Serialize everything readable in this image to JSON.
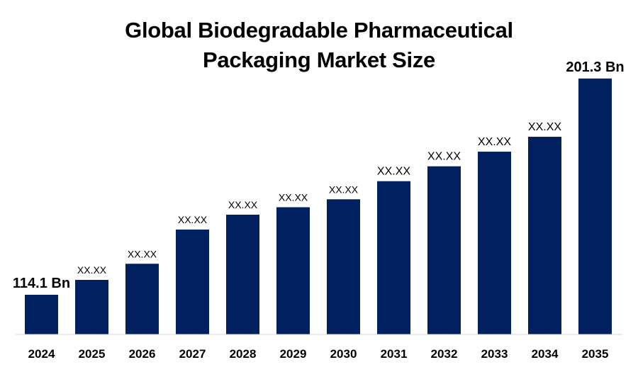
{
  "chart_data": {
    "type": "bar",
    "title_line1": "Global Biodegradable Pharmaceutical",
    "title_line2": "Packaging Market Size",
    "xlabel": "",
    "ylabel": "",
    "categories": [
      "2024",
      "2025",
      "2026",
      "2027",
      "2028",
      "2029",
      "2030",
      "2031",
      "2032",
      "2033",
      "2034",
      "2035"
    ],
    "values": [
      114.1,
      120.1,
      126.6,
      140.4,
      146.4,
      149.4,
      152.6,
      159.9,
      165.9,
      171.8,
      177.8,
      201.3
    ],
    "data_labels": [
      "114.1 Bn",
      "XX.XX",
      "XX.XX",
      "XX.XX",
      "XX.XX",
      "XX.XX",
      "XX.XX",
      "XX.XX",
      "XX.XX",
      "XX.XX",
      "XX.XX",
      "201.3 Bn"
    ],
    "bar_color": "#002060",
    "grid": false,
    "legend": "none"
  }
}
